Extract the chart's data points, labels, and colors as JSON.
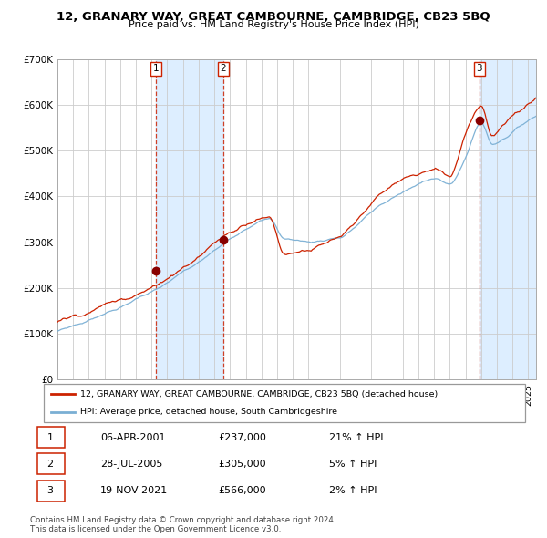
{
  "title": "12, GRANARY WAY, GREAT CAMBOURNE, CAMBRIDGE, CB23 5BQ",
  "subtitle": "Price paid vs. HM Land Registry's House Price Index (HPI)",
  "ylim": [
    0,
    700000
  ],
  "yticks": [
    0,
    100000,
    200000,
    300000,
    400000,
    500000,
    600000,
    700000
  ],
  "ytick_labels": [
    "£0",
    "£100K",
    "£200K",
    "£300K",
    "£400K",
    "£500K",
    "£600K",
    "£700K"
  ],
  "line_color_red": "#cc2200",
  "line_color_blue": "#7aafd4",
  "dot_color": "#880000",
  "vline_color": "#cc2200",
  "shade_color": "#ddeeff",
  "grid_color": "#cccccc",
  "background_color": "#ffffff",
  "purchase_dates": [
    2001.27,
    2005.57,
    2021.88
  ],
  "purchase_prices": [
    237000,
    305000,
    566000
  ],
  "purchase_labels": [
    "1",
    "2",
    "3"
  ],
  "shade_ranges": [
    [
      2001.27,
      2005.57
    ],
    [
      2021.88,
      2025.5
    ]
  ],
  "legend_red_label": "12, GRANARY WAY, GREAT CAMBOURNE, CAMBRIDGE, CB23 5BQ (detached house)",
  "legend_blue_label": "HPI: Average price, detached house, South Cambridgeshire",
  "table_data": [
    [
      "1",
      "06-APR-2001",
      "£237,000",
      "21% ↑ HPI"
    ],
    [
      "2",
      "28-JUL-2005",
      "£305,000",
      "5% ↑ HPI"
    ],
    [
      "3",
      "19-NOV-2021",
      "£566,000",
      "2% ↑ HPI"
    ]
  ],
  "footnote": "Contains HM Land Registry data © Crown copyright and database right 2024.\nThis data is licensed under the Open Government Licence v3.0.",
  "xmin": 1995.0,
  "xmax": 2025.5
}
